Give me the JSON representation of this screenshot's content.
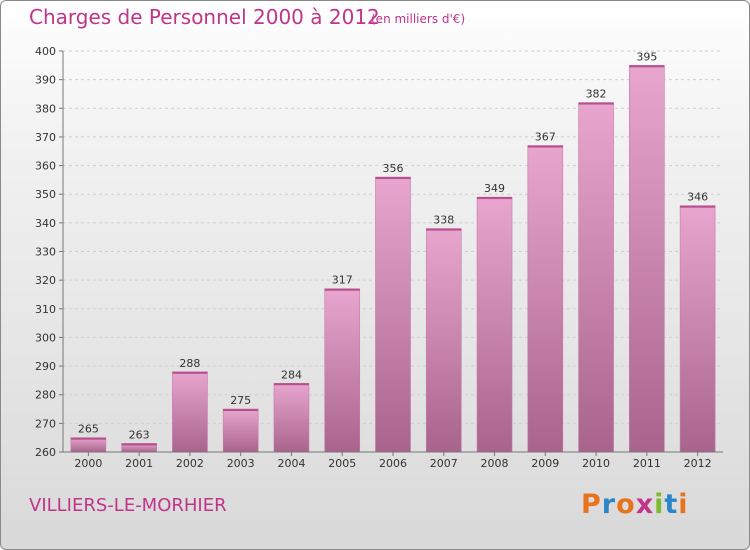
{
  "header": {
    "title": "Charges de Personnel 2000 à 2012",
    "subtitle": "(en milliers d'€)"
  },
  "footer": {
    "commune": "VILLIERS-LE-MORHIER",
    "logo_text": "Proxiti"
  },
  "colors": {
    "accent": "#c0348a",
    "bar_light": "#e8a6cf",
    "bar_dark": "#a8648c",
    "logo": [
      "#e8731d",
      "#2b86c8",
      "#e8731d",
      "#c0348a",
      "#7dbb2d",
      "#2b86c8",
      "#e8731d"
    ]
  },
  "chart_data": {
    "type": "bar",
    "categories": [
      "2000",
      "2001",
      "2002",
      "2003",
      "2004",
      "2005",
      "2006",
      "2007",
      "2008",
      "2009",
      "2010",
      "2011",
      "2012"
    ],
    "values": [
      265,
      263,
      288,
      275,
      284,
      317,
      356,
      338,
      349,
      367,
      382,
      395,
      346
    ],
    "ylim": [
      260,
      400
    ],
    "yticks": [
      260,
      270,
      280,
      290,
      300,
      310,
      320,
      330,
      340,
      350,
      360,
      370,
      380,
      390,
      400
    ],
    "grid": true,
    "legend": "none"
  }
}
